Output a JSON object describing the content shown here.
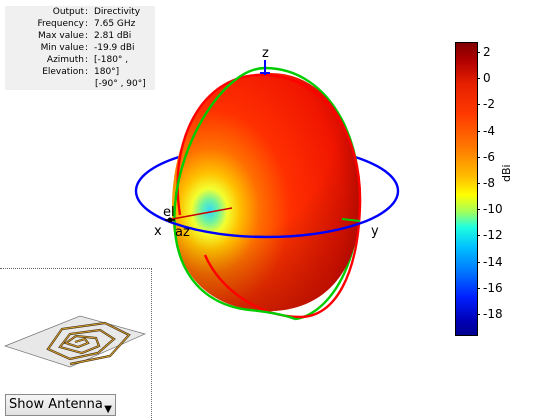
{
  "info": {
    "output_label": "Output",
    "output_value": "Directivity",
    "frequency_label": "Frequency",
    "frequency_value": "7.65 GHz",
    "max_label": "Max value",
    "max_value": "2.81 dBi",
    "min_label": "Min value",
    "min_value": "-19.9 dBi",
    "azimuth_label": "Azimuth",
    "azimuth_value": "[-180° ,",
    "elevation_label": "Elevation",
    "elevation_value": "180°]",
    "elevation_cont": "[-90° , 90°]"
  },
  "plot": {
    "axis_z": "z",
    "axis_x": "x",
    "axis_y": "y",
    "marker_el": "el",
    "marker_az": "az",
    "colors": {
      "azimuth_ring": "#0000ff",
      "elevation_ring_red": "#ff0000",
      "elevation_ring_green": "#00cc00",
      "pattern_hot": "#ff1e00",
      "pattern_cold": "#00d0ff"
    }
  },
  "colorbar": {
    "unit": "dBi",
    "ticks": [
      "2",
      "0",
      "-2",
      "-4",
      "-6",
      "-8",
      "-10",
      "-12",
      "-14",
      "-16",
      "-18"
    ]
  },
  "controls": {
    "view_select_value": "Show Antenna",
    "view_select_icon": "chevron-down-icon"
  }
}
